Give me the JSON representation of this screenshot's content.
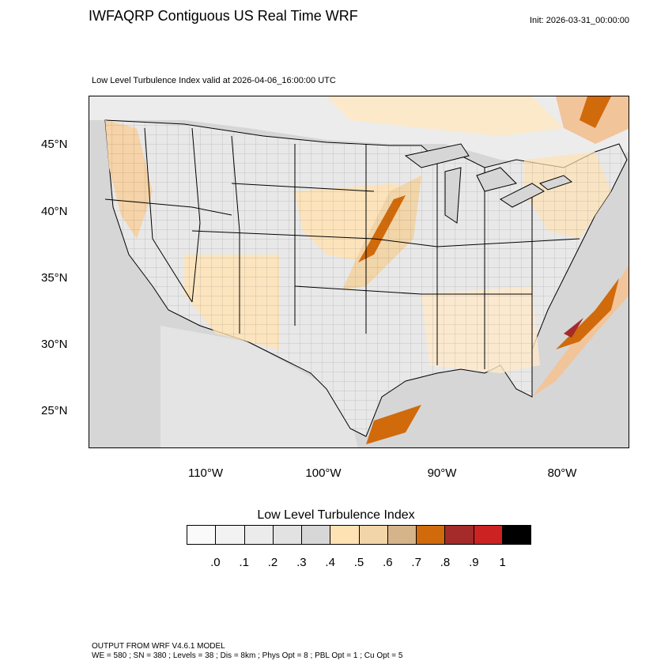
{
  "header": {
    "title": "IWFAQRP Contiguous US Real Time WRF",
    "init": "Init: 2026-03-31_00:00:00"
  },
  "map": {
    "subtitle": "Low Level Turbulence Index valid at 2026-04-06_16:00:00 UTC",
    "lat_labels": [
      "45°N",
      "40°N",
      "35°N",
      "30°N",
      "25°N"
    ],
    "lon_labels": [
      "110°W",
      "100°W",
      "90°W",
      "80°W"
    ],
    "features": [
      "state-borders",
      "county-borders",
      "coastlines",
      "great-lakes"
    ]
  },
  "legend": {
    "title": "Low Level Turbulence Index",
    "labels": [
      ".0",
      ".1",
      ".2",
      ".3",
      ".4",
      ".5",
      ".6",
      ".7",
      ".8",
      ".9",
      "1"
    ],
    "colors": [
      "#fafafa",
      "#f2f2f2",
      "#ebebeb",
      "#e2e2e2",
      "#d7d7d7",
      "#ffe2b3",
      "#f2d5a8",
      "#d6b48a",
      "#d06a0b",
      "#a52a2a",
      "#cc2222",
      "#000000"
    ]
  },
  "footer": {
    "model": "OUTPUT FROM WRF V4.6.1 MODEL",
    "config": "WE = 580 ; SN = 380 ; Levels = 38 ; Dis = 8km ; Phys Opt = 8 ; PBL Opt = 1 ; Cu Opt = 5"
  }
}
